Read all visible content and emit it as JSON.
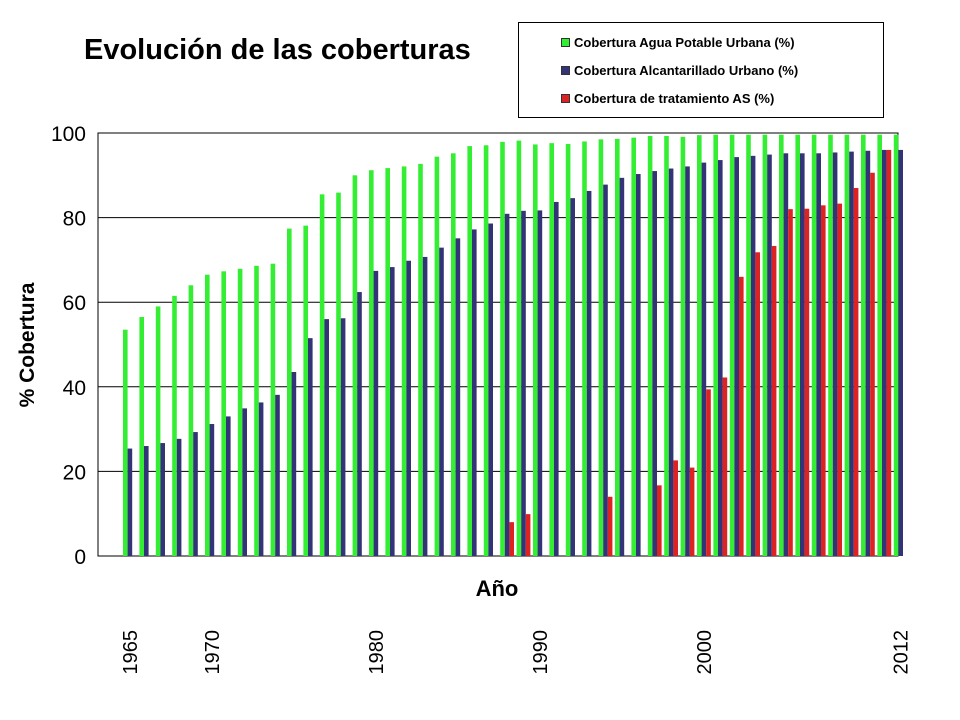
{
  "chart_data": {
    "type": "bar",
    "title": "Evolución de las coberturas",
    "xlabel": "Año",
    "ylabel": "% Cobertura",
    "ylim": [
      0,
      100
    ],
    "yticks": [
      0,
      20,
      40,
      60,
      80,
      100
    ],
    "grid": true,
    "legend_position": "top-right",
    "x_tick_labels": [
      "1965",
      "1970",
      "1980",
      "1990",
      "2000",
      "2012"
    ],
    "categories": [
      1965,
      1966,
      1967,
      1968,
      1969,
      1970,
      1971,
      1972,
      1973,
      1974,
      1975,
      1976,
      1977,
      1978,
      1979,
      1980,
      1981,
      1982,
      1983,
      1984,
      1985,
      1986,
      1987,
      1988,
      1989,
      1990,
      1991,
      1992,
      1993,
      1994,
      1995,
      1996,
      1997,
      1998,
      1999,
      2000,
      2001,
      2002,
      2003,
      2004,
      2005,
      2006,
      2007,
      2008,
      2009,
      2010,
      2011,
      2012
    ],
    "series": [
      {
        "name": "Cobertura Agua Potable Urbana (%)",
        "color": "#33ee33",
        "values": [
          53.5,
          56.5,
          59,
          61.5,
          64,
          66.5,
          67.3,
          67.9,
          68.6,
          69.1,
          77.4,
          78.1,
          85.5,
          85.9,
          90,
          91.2,
          91.7,
          92.1,
          92.7,
          94.4,
          95.2,
          96.9,
          97.1,
          97.9,
          98.2,
          97.3,
          97.6,
          97.4,
          98,
          98.5,
          98.6,
          98.9,
          99.3,
          99.3,
          99.1,
          99.5,
          99.6,
          99.6,
          99.6,
          99.6,
          99.6,
          99.6,
          99.6,
          99.6,
          99.6,
          99.6,
          99.6,
          99.6
        ]
      },
      {
        "name": "Cobertura Alcantarillado Urbano (%)",
        "color": "#333377",
        "values": [
          25.4,
          26,
          26.7,
          27.7,
          29.3,
          31.2,
          33,
          34.9,
          36.3,
          38.1,
          43.5,
          51.5,
          56,
          56.2,
          62.4,
          67.4,
          68.3,
          69.8,
          70.7,
          72.9,
          75.1,
          77.2,
          78.6,
          80.9,
          81.6,
          81.7,
          83.7,
          84.6,
          86.3,
          87.8,
          89.4,
          90.3,
          91,
          91.6,
          92.1,
          93,
          93.6,
          94.3,
          94.6,
          94.9,
          95.2,
          95.2,
          95.2,
          95.4,
          95.6,
          95.8,
          96,
          96
        ]
      },
      {
        "name": "Cobertura de tratamiento AS (%)",
        "color": "#dd2222",
        "values": [
          0,
          0,
          0,
          0,
          0,
          0,
          0,
          0,
          0,
          0,
          0,
          0,
          0,
          0,
          0,
          0,
          0,
          0,
          0,
          0,
          0,
          0,
          0,
          8,
          9.9,
          0,
          0,
          0,
          0,
          14,
          0,
          0,
          16.7,
          22.6,
          20.9,
          39.4,
          42.2,
          66,
          71.8,
          73.3,
          82,
          82.1,
          82.9,
          83.3,
          87,
          90.6,
          96,
          0
        ]
      }
    ]
  }
}
